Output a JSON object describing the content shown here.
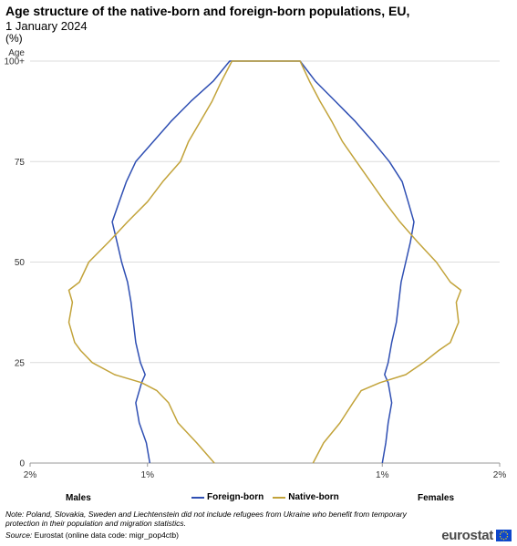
{
  "title": "Age structure of the native-born and foreign-born populations, EU,",
  "subtitle": "1 January 2024",
  "unit": "(%)",
  "group_labels": {
    "left": "Males",
    "right": "Females"
  },
  "note": "Note: Poland, Slovakia, Sweden and Liechtenstein did not include refugees from Ukraine who benefit from temporary protection in their population and migration statistics.",
  "source": {
    "label": "Source:",
    "text": "Eurostat (online data code: migr_pop4ctb)"
  },
  "logo": "eurostat",
  "chart_data": {
    "type": "area",
    "title": "Age structure of the native-born and foreign-born populations, EU,",
    "ylabel": "Age",
    "y_ticks": [
      0,
      25,
      50,
      75,
      100
    ],
    "y_tick_labels": [
      "0",
      "25",
      "50",
      "75",
      "100+"
    ],
    "x_ticks": [
      -2,
      -1,
      1,
      2
    ],
    "x_tick_labels": [
      "2%",
      "1%",
      "1%",
      "2%"
    ],
    "xlim": [
      -2,
      2
    ],
    "ylim": [
      0,
      100
    ],
    "grid": true,
    "legend_position": "bottom",
    "colors": {
      "foreign": "#2f4fb3",
      "native": "#c2a33a"
    },
    "series": [
      {
        "name": "Foreign-born",
        "ages": [
          0,
          5,
          10,
          15,
          20,
          22,
          25,
          30,
          35,
          40,
          45,
          50,
          55,
          60,
          65,
          70,
          75,
          80,
          85,
          90,
          95,
          100
        ],
        "males": [
          0.98,
          1.01,
          1.07,
          1.1,
          1.05,
          1.02,
          1.06,
          1.1,
          1.12,
          1.14,
          1.17,
          1.22,
          1.26,
          1.3,
          1.24,
          1.18,
          1.1,
          0.95,
          0.8,
          0.63,
          0.44,
          0.3
        ],
        "females": [
          1.0,
          1.03,
          1.05,
          1.08,
          1.05,
          1.02,
          1.05,
          1.08,
          1.12,
          1.14,
          1.16,
          1.2,
          1.24,
          1.27,
          1.22,
          1.17,
          1.06,
          0.92,
          0.77,
          0.6,
          0.43,
          0.3
        ]
      },
      {
        "name": "Native-born",
        "ages": [
          0,
          5,
          10,
          15,
          18,
          20,
          22,
          25,
          28,
          30,
          35,
          40,
          43,
          45,
          50,
          55,
          60,
          65,
          70,
          75,
          80,
          85,
          90,
          95,
          100
        ],
        "males": [
          0.43,
          0.58,
          0.74,
          0.82,
          0.92,
          1.05,
          1.28,
          1.47,
          1.57,
          1.62,
          1.67,
          1.64,
          1.67,
          1.58,
          1.5,
          1.33,
          1.17,
          1.0,
          0.87,
          0.72,
          0.65,
          0.55,
          0.45,
          0.37,
          0.28
        ],
        "females": [
          0.41,
          0.5,
          0.64,
          0.75,
          0.82,
          0.98,
          1.2,
          1.35,
          1.48,
          1.58,
          1.65,
          1.63,
          1.67,
          1.58,
          1.46,
          1.3,
          1.15,
          1.02,
          0.9,
          0.78,
          0.66,
          0.57,
          0.47,
          0.38,
          0.3
        ]
      }
    ]
  }
}
